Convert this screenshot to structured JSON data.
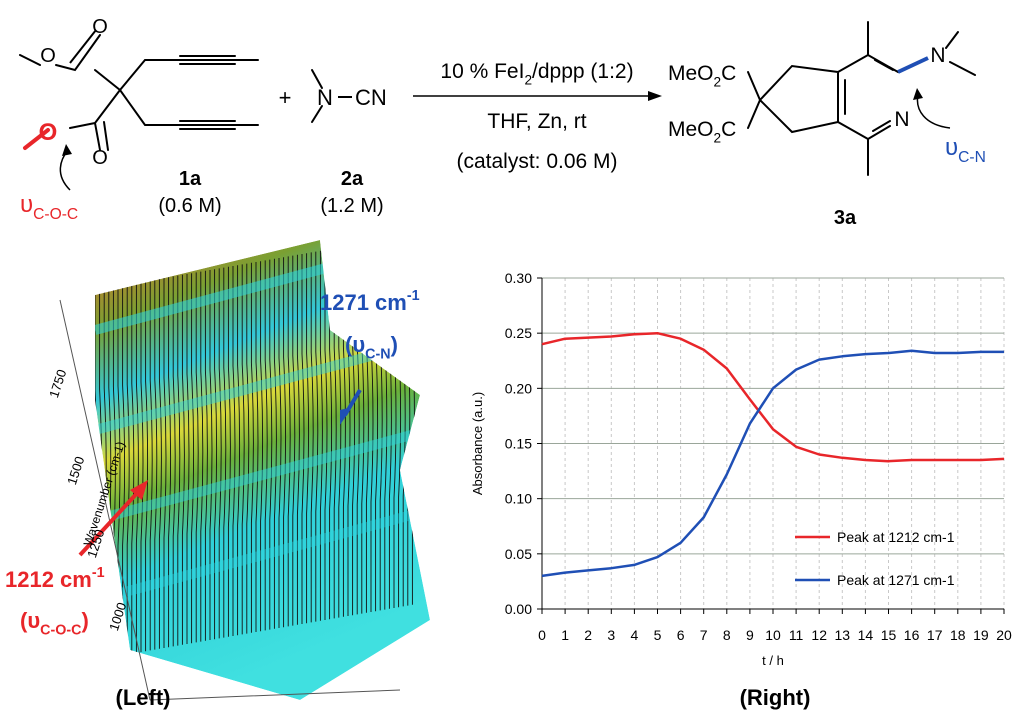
{
  "scheme": {
    "compound_1a": {
      "label": "1a",
      "conc": "(0.6 M)",
      "atoms": [
        "O",
        "O",
        "O",
        "O"
      ]
    },
    "plus": "+",
    "compound_2a": {
      "label": "2a",
      "conc": "(1.2 M)",
      "atoms": [
        "N",
        "CN"
      ]
    },
    "conditions": [
      [
        "10 % FeI",
        "2",
        "/dppp (1:2)"
      ],
      [
        "THF, Zn, rt"
      ],
      [
        "(catalyst: 0.06 M)"
      ]
    ],
    "product": {
      "label": "3a",
      "ester_1": [
        "MeO",
        "2",
        "C"
      ],
      "ester_2": [
        "MeO",
        "2",
        "C"
      ],
      "atoms": [
        "N",
        "N"
      ]
    },
    "annotation_left": [
      "υ",
      "C-O-C"
    ],
    "annotation_right": [
      "υ",
      "C-N"
    ]
  },
  "left_panel": {
    "caption": "(Left)",
    "axis_label": "Wavenumber (cm-1)",
    "ticks": [
      "1750",
      "1500",
      "1250",
      "1000"
    ],
    "peak_1271": [
      "1271 cm",
      "-1"
    ],
    "peak_1271_mode": [
      "(υ",
      "C-N",
      ")"
    ],
    "peak_1212": [
      "1212 cm",
      "-1"
    ],
    "peak_1212_mode": [
      "(υ",
      "C-O-C",
      ")"
    ]
  },
  "right_panel": {
    "caption": "(Right)"
  },
  "chart_data": {
    "type": "line",
    "x_label": "t / h",
    "y_label": "Absorbance (a.u.)",
    "x": [
      0,
      1,
      2,
      3,
      4,
      5,
      6,
      7,
      8,
      9,
      10,
      11,
      12,
      13,
      14,
      15,
      16,
      17,
      18,
      19,
      20
    ],
    "series": [
      {
        "name": "Peak at 1212 cm-1",
        "color": "#e8262a",
        "values": [
          0.24,
          0.245,
          0.246,
          0.247,
          0.249,
          0.25,
          0.245,
          0.235,
          0.218,
          0.19,
          0.163,
          0.147,
          0.14,
          0.137,
          0.135,
          0.134,
          0.135,
          0.135,
          0.135,
          0.135,
          0.136
        ]
      },
      {
        "name": "Peak at 1271 cm-1",
        "color": "#1f4fb5",
        "values": [
          0.03,
          0.033,
          0.035,
          0.037,
          0.04,
          0.047,
          0.06,
          0.083,
          0.122,
          0.168,
          0.2,
          0.217,
          0.226,
          0.229,
          0.231,
          0.232,
          0.234,
          0.232,
          0.232,
          0.233,
          0.233
        ]
      }
    ],
    "xlim": [
      0,
      20
    ],
    "xticks": [
      0,
      1,
      2,
      3,
      4,
      5,
      6,
      7,
      8,
      9,
      10,
      11,
      12,
      13,
      14,
      15,
      16,
      17,
      18,
      19,
      20
    ],
    "ylim": [
      0,
      0.3
    ],
    "yticks": [
      {
        "value": 0,
        "label": "0.00"
      },
      {
        "value": 0.05,
        "label": "0.05"
      },
      {
        "value": 0.1,
        "label": "0.10"
      },
      {
        "value": 0.15,
        "label": "0.15"
      },
      {
        "value": 0.2,
        "label": "0.20"
      },
      {
        "value": 0.25,
        "label": "0.25"
      },
      {
        "value": 0.3,
        "label": "0.30"
      }
    ],
    "grid": true,
    "legend": "lower right"
  }
}
